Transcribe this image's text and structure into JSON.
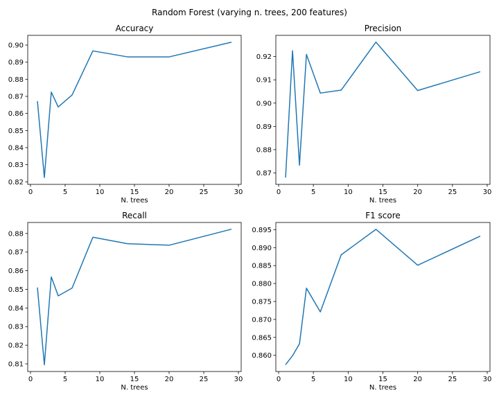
{
  "figure_title": "Random Forest (varying n. trees, 200 features)",
  "colors": {
    "line": "#1f77b4",
    "axes": "#000000",
    "background": "#ffffff"
  },
  "chart_data": [
    {
      "type": "line",
      "title": "Accuracy",
      "xlabel": "N. trees",
      "ylabel": "",
      "x": [
        1,
        2,
        3,
        4,
        6,
        9,
        14,
        20,
        29
      ],
      "series": [
        {
          "values": [
            0.8672,
            0.8225,
            0.8725,
            0.8638,
            0.8708,
            0.8966,
            0.8931,
            0.8931,
            0.9017
          ]
        }
      ],
      "xlim": [
        -0.4,
        30.4
      ],
      "ylim": [
        0.8185,
        0.9057
      ],
      "xticks": [
        0,
        5,
        10,
        15,
        20,
        25,
        30
      ],
      "yticks": [
        0.82,
        0.83,
        0.84,
        0.85,
        0.86,
        0.87,
        0.88,
        0.89,
        0.9
      ],
      "ytick_labels": [
        "0.82",
        "0.83",
        "0.84",
        "0.85",
        "0.86",
        "0.87",
        "0.88",
        "0.89",
        "0.90"
      ],
      "grid": false
    },
    {
      "type": "line",
      "title": "Precision",
      "xlabel": "N. trees",
      "ylabel": "",
      "x": [
        1,
        2,
        3,
        4,
        6,
        9,
        14,
        20,
        29
      ],
      "series": [
        {
          "values": [
            0.868,
            0.9225,
            0.8733,
            0.9209,
            0.9043,
            0.9056,
            0.9262,
            0.9054,
            0.9135
          ]
        }
      ],
      "xlim": [
        -0.4,
        30.4
      ],
      "ylim": [
        0.8651,
        0.9291
      ],
      "xticks": [
        0,
        5,
        10,
        15,
        20,
        25,
        30
      ],
      "yticks": [
        0.87,
        0.88,
        0.89,
        0.9,
        0.91,
        0.92
      ],
      "ytick_labels": [
        "0.87",
        "0.88",
        "0.89",
        "0.90",
        "0.91",
        "0.92"
      ],
      "grid": false
    },
    {
      "type": "line",
      "title": "Recall",
      "xlabel": "N. trees",
      "ylabel": "",
      "x": [
        1,
        2,
        3,
        4,
        6,
        9,
        14,
        20,
        29
      ],
      "series": [
        {
          "values": [
            0.851,
            0.8095,
            0.8567,
            0.8465,
            0.8507,
            0.878,
            0.8745,
            0.8737,
            0.8823
          ]
        }
      ],
      "xlim": [
        -0.4,
        30.4
      ],
      "ylim": [
        0.8059,
        0.8859
      ],
      "xticks": [
        0,
        5,
        10,
        15,
        20,
        25,
        30
      ],
      "yticks": [
        0.81,
        0.82,
        0.83,
        0.84,
        0.85,
        0.86,
        0.87,
        0.88
      ],
      "ytick_labels": [
        "0.81",
        "0.82",
        "0.83",
        "0.84",
        "0.85",
        "0.86",
        "0.87",
        "0.88"
      ],
      "grid": false
    },
    {
      "type": "line",
      "title": "F1 score",
      "xlabel": "N. trees",
      "ylabel": "",
      "x": [
        1,
        2,
        3,
        4,
        6,
        9,
        14,
        20,
        29
      ],
      "series": [
        {
          "values": [
            0.8574,
            0.8599,
            0.8632,
            0.8787,
            0.8721,
            0.888,
            0.8951,
            0.8851,
            0.8932
          ]
        }
      ],
      "xlim": [
        -0.4,
        30.4
      ],
      "ylim": [
        0.8555,
        0.897
      ],
      "xticks": [
        0,
        5,
        10,
        15,
        20,
        25,
        30
      ],
      "yticks": [
        0.86,
        0.865,
        0.87,
        0.875,
        0.88,
        0.885,
        0.89,
        0.895
      ],
      "ytick_labels": [
        "0.860",
        "0.865",
        "0.870",
        "0.875",
        "0.880",
        "0.885",
        "0.890",
        "0.895"
      ],
      "grid": false
    }
  ]
}
